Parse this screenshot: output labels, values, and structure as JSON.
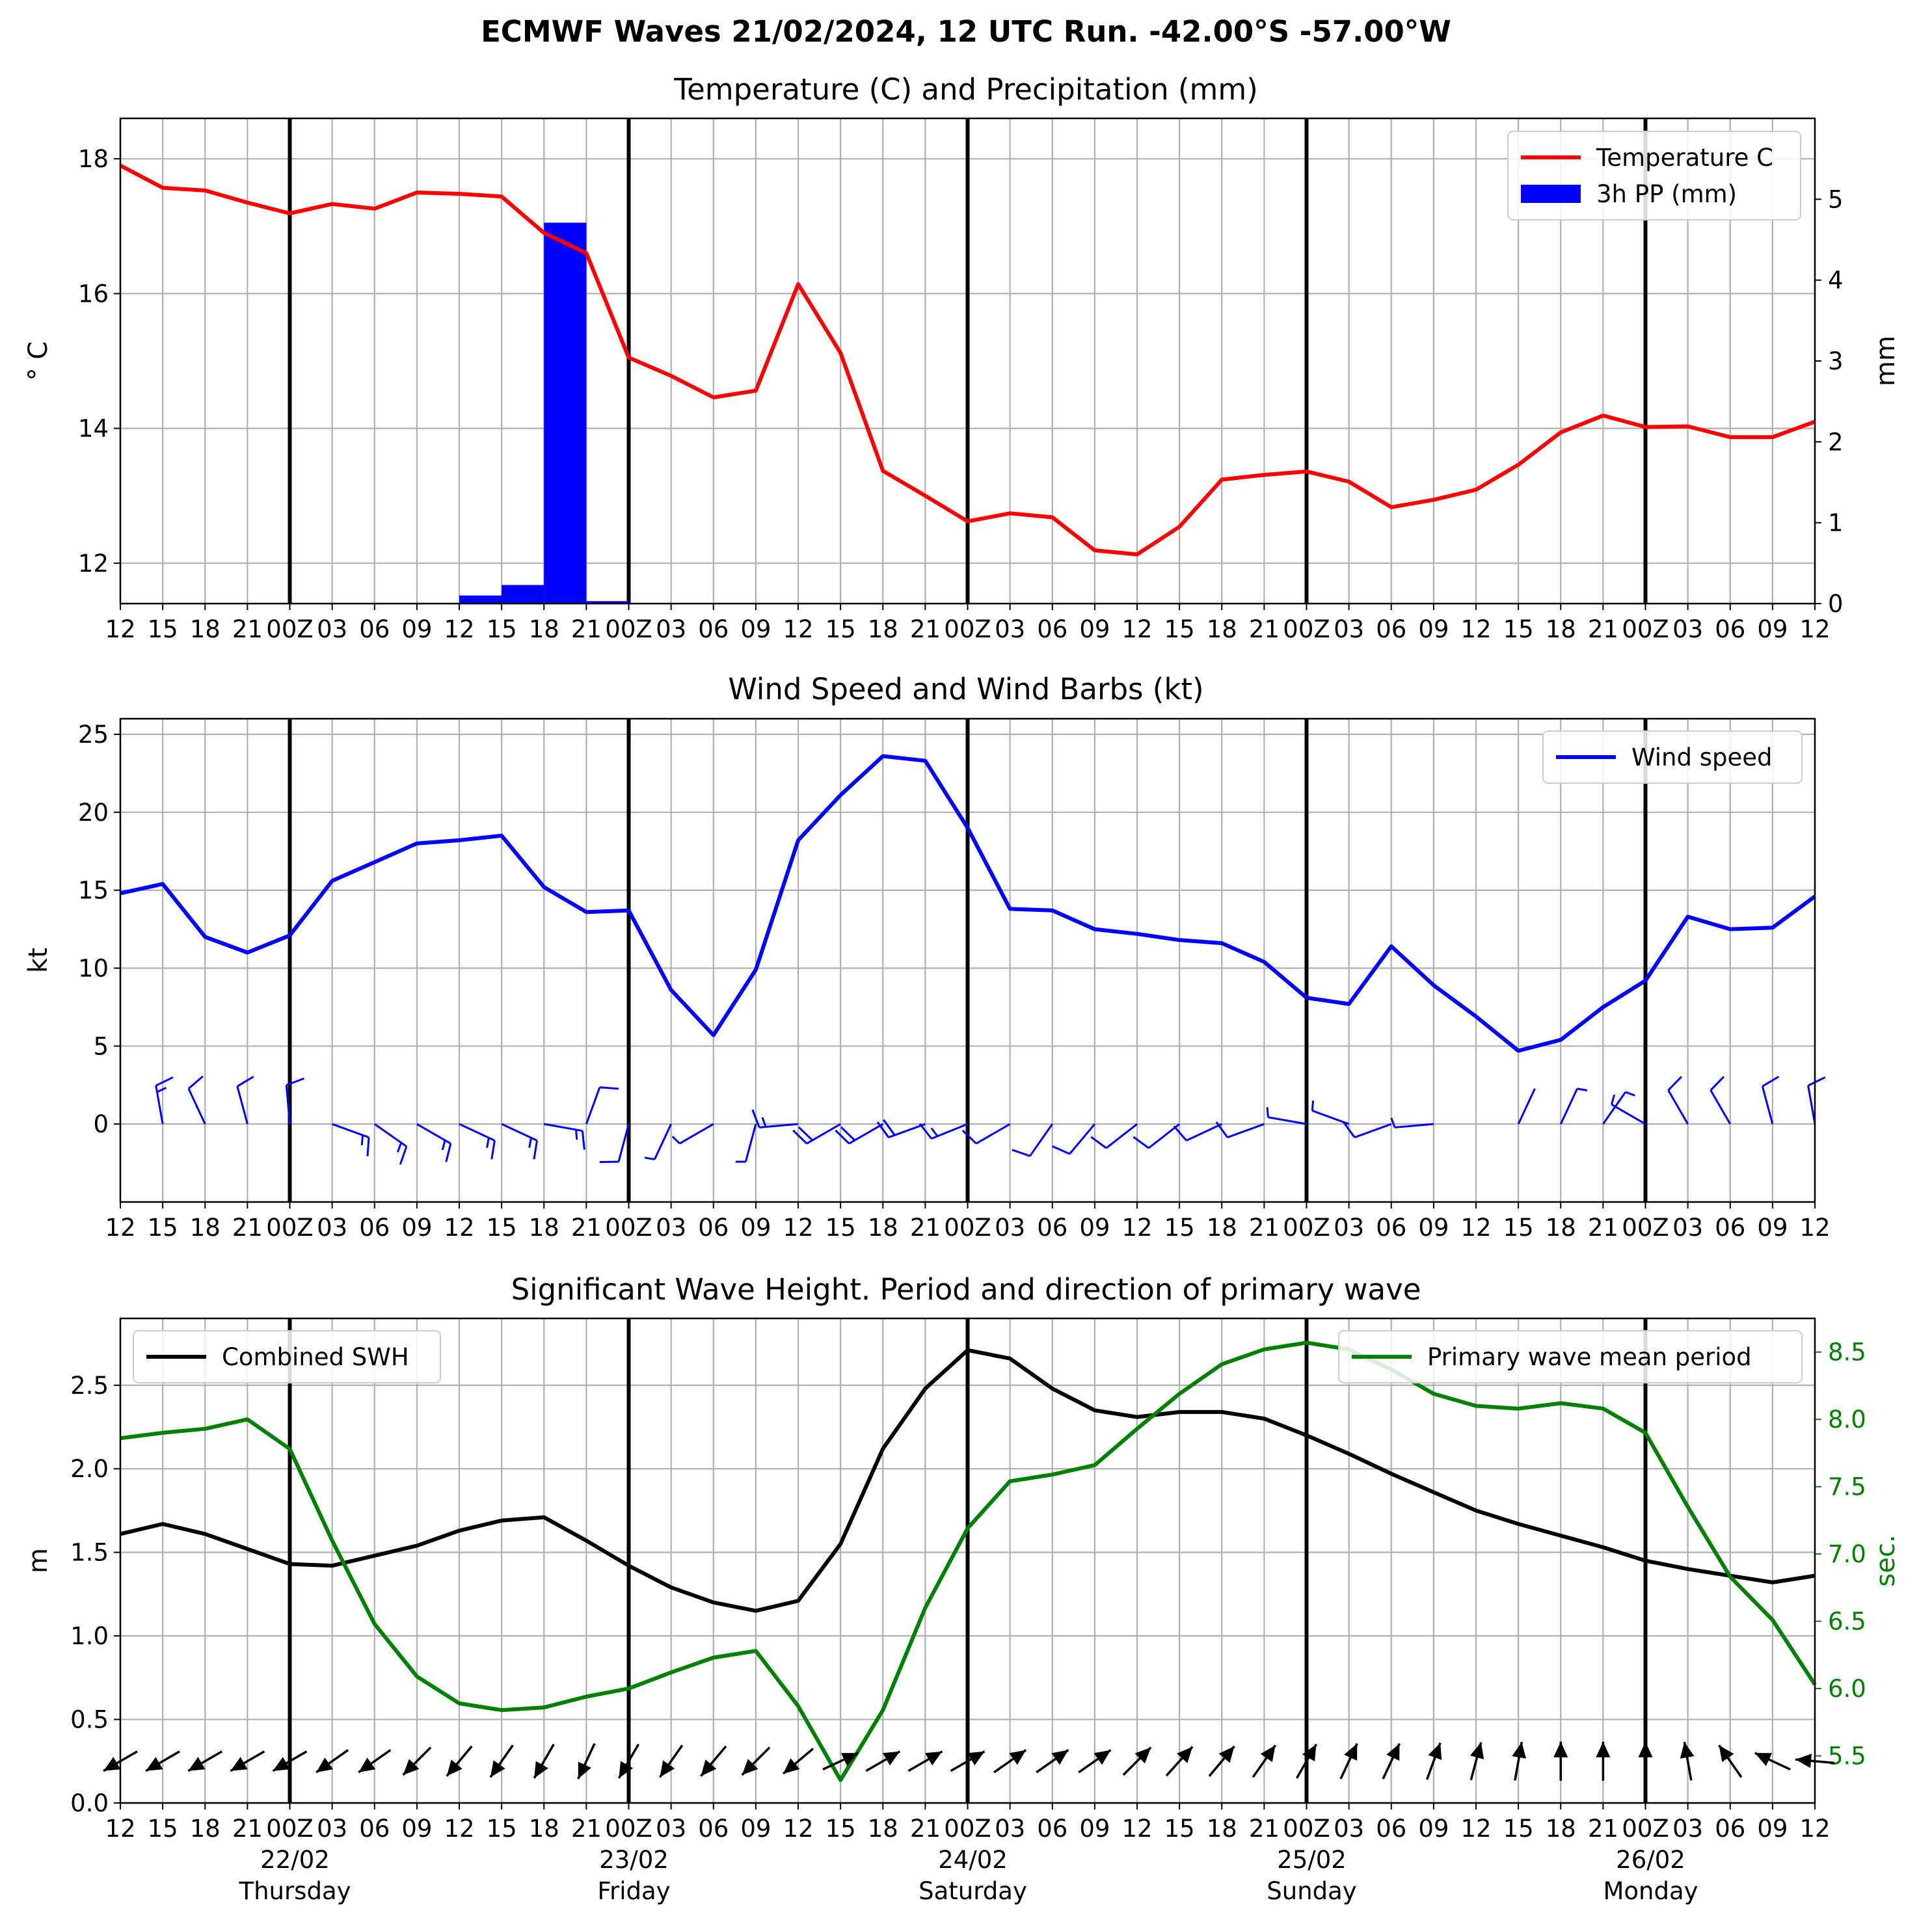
{
  "suptitle": "ECMWF Waves 21/02/2024, 12 UTC Run. -42.00°S -57.00°W",
  "x_tick_labels": [
    "12",
    "15",
    "18",
    "21",
    "00Z",
    "03",
    "06",
    "09",
    "12",
    "15",
    "18",
    "21",
    "00Z",
    "03",
    "06",
    "09",
    "12",
    "15",
    "18",
    "21",
    "00Z",
    "03",
    "06",
    "09",
    "12",
    "15",
    "18",
    "21",
    "00Z",
    "03",
    "06",
    "09",
    "12",
    "15",
    "18",
    "21",
    "00Z",
    "03",
    "06",
    "09",
    "12"
  ],
  "day_labels": [
    {
      "index": 4,
      "date": "22/02",
      "day": "Thursday"
    },
    {
      "index": 12,
      "date": "23/02",
      "day": "Friday"
    },
    {
      "index": 20,
      "date": "24/02",
      "day": "Saturday"
    },
    {
      "index": 28,
      "date": "25/02",
      "day": "Sunday"
    },
    {
      "index": 36,
      "date": "26/02",
      "day": "Monday"
    }
  ],
  "colors": {
    "temperature": "#ff0000",
    "precip": "#0000ff",
    "wind": "#0000ff",
    "swh": "#000000",
    "period": "#008000",
    "day_line": "#000000",
    "grid": "#b0b0b0"
  },
  "chart_data": [
    {
      "type": "line",
      "title": "Temperature (C) and Precipitation (mm)",
      "x_hours_from_run": [
        0,
        3,
        6,
        9,
        12,
        15,
        18,
        21,
        24,
        27,
        30,
        33,
        36,
        39,
        42,
        45,
        48,
        51,
        54,
        57,
        60,
        63,
        66,
        69,
        72,
        75,
        78,
        81,
        84,
        87,
        90,
        93,
        96,
        99,
        102,
        105,
        108,
        111,
        114,
        117,
        120
      ],
      "ylabel": "° C",
      "ylabel_right": "mm",
      "ylim": [
        11.4,
        18.6
      ],
      "ylim_right": [
        0,
        6.0
      ],
      "yticks": [
        12,
        14,
        16,
        18
      ],
      "yticks_right": [
        0,
        1,
        2,
        3,
        4,
        5
      ],
      "grid": true,
      "legend_placement": "top-right",
      "series": [
        {
          "name": "Temperature C",
          "kind": "line",
          "color": "#ff0000",
          "values": [
            17.9,
            17.57,
            17.53,
            17.35,
            17.19,
            17.33,
            17.26,
            17.5,
            17.48,
            17.44,
            16.9,
            16.6,
            15.05,
            14.78,
            14.46,
            14.56,
            16.14,
            15.12,
            13.37,
            13.0,
            12.62,
            12.74,
            12.68,
            12.19,
            12.13,
            12.54,
            13.24,
            13.31,
            13.36,
            13.21,
            12.83,
            12.94,
            13.09,
            13.46,
            13.94,
            14.19,
            14.02,
            14.03,
            13.87,
            13.87,
            14.1
          ]
        },
        {
          "name": "3h PP (mm)",
          "kind": "bar",
          "color": "#0000ff",
          "bar_align": "right",
          "values": [
            0,
            0,
            0,
            0,
            0,
            0,
            0,
            0,
            0,
            0.1,
            0.23,
            4.71,
            0.03,
            0,
            0,
            0,
            0,
            0,
            0,
            0,
            0,
            0,
            0,
            0,
            0,
            0,
            0,
            0,
            0,
            0,
            0,
            0,
            0,
            0,
            0,
            0,
            0,
            0,
            0,
            0,
            0
          ]
        }
      ]
    },
    {
      "type": "line",
      "title": "Wind Speed and Wind Barbs (kt)",
      "x_hours_from_run": [
        0,
        3,
        6,
        9,
        12,
        15,
        18,
        21,
        24,
        27,
        30,
        33,
        36,
        39,
        42,
        45,
        48,
        51,
        54,
        57,
        60,
        63,
        66,
        69,
        72,
        75,
        78,
        81,
        84,
        87,
        90,
        93,
        96,
        99,
        102,
        105,
        108,
        111,
        114,
        117,
        120
      ],
      "ylabel": "kt",
      "ylim": [
        -5,
        26
      ],
      "yticks": [
        0,
        5,
        10,
        15,
        20,
        25
      ],
      "grid": true,
      "legend_placement": "top-right",
      "series": [
        {
          "name": "Wind speed",
          "color": "#0000ff",
          "values": [
            14.8,
            15.4,
            12.0,
            11.0,
            12.1,
            15.6,
            16.8,
            18.0,
            18.2,
            18.5,
            15.2,
            13.6,
            13.7,
            8.6,
            5.7,
            9.9,
            18.2,
            21.1,
            23.6,
            23.3,
            19.0,
            13.8,
            13.7,
            12.5,
            12.2,
            11.8,
            11.6,
            10.4,
            8.1,
            7.7,
            11.4,
            8.9,
            6.9,
            4.7,
            5.4,
            7.5,
            9.2,
            13.3,
            12.5,
            12.6,
            14.6
          ]
        }
      ],
      "barbs": {
        "color": "#0000ff",
        "direction_from_deg": [
          null,
          350,
          335,
          345,
          355,
          110,
          125,
          120,
          115,
          115,
          100,
          20,
          195,
          205,
          240,
          195,
          265,
          240,
          240,
          250,
          248,
          240,
          215,
          220,
          232,
          232,
          245,
          250,
          280,
          290,
          250,
          265,
          null,
          25,
          25,
          35,
          300,
          330,
          330,
          345,
          350
        ]
      }
    },
    {
      "type": "line",
      "title": "Significant Wave Height. Period and direction of primary wave",
      "x_hours_from_run": [
        0,
        3,
        6,
        9,
        12,
        15,
        18,
        21,
        24,
        27,
        30,
        33,
        36,
        39,
        42,
        45,
        48,
        51,
        54,
        57,
        60,
        63,
        66,
        69,
        72,
        75,
        78,
        81,
        84,
        87,
        90,
        93,
        96,
        99,
        102,
        105,
        108,
        111,
        114,
        117,
        120
      ],
      "ylabel": "m",
      "ylabel_right": "sec.",
      "ylim": [
        0,
        2.9
      ],
      "ylim_right": [
        5.15,
        8.75
      ],
      "yticks": [
        0.0,
        0.5,
        1.0,
        1.5,
        2.0,
        2.5
      ],
      "yticks_right": [
        5.5,
        6.0,
        6.5,
        7.0,
        7.5,
        8.0,
        8.5
      ],
      "grid": true,
      "series": [
        {
          "name": "Combined SWH",
          "axis": "left",
          "color": "#000000",
          "legend_placement": "top-left",
          "values": [
            1.61,
            1.67,
            1.61,
            1.52,
            1.43,
            1.42,
            1.48,
            1.54,
            1.63,
            1.69,
            1.71,
            1.57,
            1.42,
            1.29,
            1.2,
            1.15,
            1.21,
            1.55,
            2.12,
            2.48,
            2.71,
            2.66,
            2.48,
            2.35,
            2.31,
            2.34,
            2.34,
            2.3,
            2.2,
            2.09,
            1.97,
            1.86,
            1.75,
            1.67,
            1.6,
            1.53,
            1.45,
            1.4,
            1.36,
            1.32,
            1.36
          ]
        },
        {
          "name": "Primary wave mean period",
          "axis": "right",
          "color": "#008000",
          "legend_placement": "top-right",
          "values": [
            7.86,
            7.9,
            7.93,
            8.0,
            7.78,
            7.1,
            6.48,
            6.09,
            5.89,
            5.84,
            5.86,
            5.94,
            6.0,
            6.12,
            6.23,
            6.28,
            5.87,
            5.32,
            5.84,
            6.6,
            7.19,
            7.54,
            7.59,
            7.66,
            7.93,
            8.19,
            8.41,
            8.52,
            8.57,
            8.52,
            8.37,
            8.19,
            8.1,
            8.08,
            8.12,
            8.08,
            7.9,
            7.35,
            6.83,
            6.51,
            6.03
          ]
        }
      ],
      "wave_arrows": {
        "color": "#000000",
        "direction_from_deg": [
          60,
          60,
          60,
          60,
          60,
          55,
          55,
          45,
          40,
          35,
          30,
          25,
          30,
          35,
          40,
          45,
          50,
          245,
          240,
          240,
          240,
          235,
          235,
          235,
          225,
          222,
          220,
          215,
          210,
          205,
          205,
          200,
          195,
          190,
          180,
          180,
          180,
          170,
          145,
          115,
          95
        ]
      }
    }
  ]
}
